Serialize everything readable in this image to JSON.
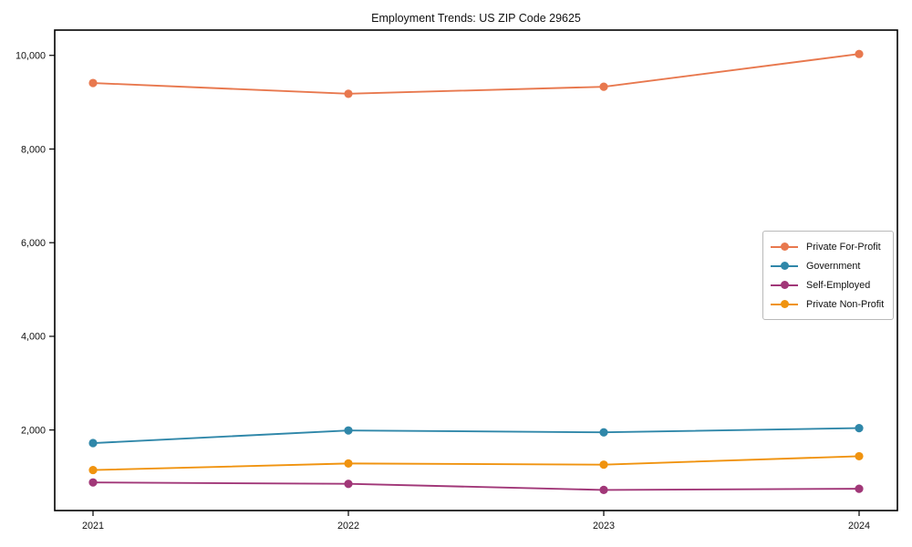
{
  "chart_data": {
    "type": "line",
    "title": "Employment Trends: US ZIP Code 29625",
    "xlabel": "",
    "ylabel": "",
    "x": [
      2021,
      2022,
      2023,
      2024
    ],
    "x_labels": [
      "2021",
      "2022",
      "2023",
      "2024"
    ],
    "y_ticks": [
      2000,
      4000,
      6000,
      8000,
      10000
    ],
    "y_tick_labels": [
      "2,000",
      "4,000",
      "6,000",
      "8,000",
      "10,000"
    ],
    "xlim": [
      2020.85,
      2024.15
    ],
    "ylim": [
      280,
      10540
    ],
    "grid": false,
    "marker": "circle",
    "legend_position": "center right",
    "series": [
      {
        "name": "Private For-Profit",
        "color": "#e8784e",
        "values": [
          9410,
          9180,
          9330,
          10030
        ]
      },
      {
        "name": "Government",
        "color": "#2f87a9",
        "values": [
          1720,
          1990,
          1950,
          2040
        ]
      },
      {
        "name": "Self-Employed",
        "color": "#a13778",
        "values": [
          880,
          850,
          720,
          745
        ]
      },
      {
        "name": "Private Non-Profit",
        "color": "#f0930f",
        "values": [
          1145,
          1285,
          1260,
          1440
        ]
      }
    ],
    "axis_color": "#000000"
  }
}
